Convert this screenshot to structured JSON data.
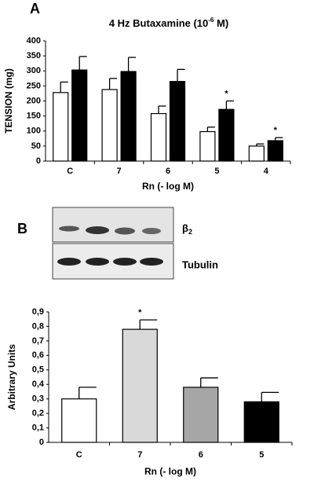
{
  "panels": [
    "A",
    "B"
  ],
  "blot": {
    "target": "β",
    "target_subscript": "2",
    "loading": "Tubulin"
  },
  "chart_data": [
    {
      "type": "bar",
      "title_parts": [
        "4 Hz Butaxamine (10",
        "-6",
        " M)"
      ],
      "x_label": "Rn (- log M)",
      "y_label": "TENSION (mg)",
      "categories": [
        "C",
        "7",
        "6",
        "5",
        "4"
      ],
      "series": [
        {
          "color": "#ffffff",
          "values": [
            228,
            238,
            158,
            98,
            50
          ],
          "errors": [
            35,
            37,
            25,
            15,
            7
          ],
          "significance": [
            null,
            null,
            null,
            null,
            null
          ]
        },
        {
          "color": "#000000",
          "values": [
            303,
            298,
            265,
            172,
            68
          ],
          "errors": [
            45,
            47,
            40,
            28,
            10
          ],
          "significance": [
            null,
            null,
            null,
            "*",
            "*"
          ]
        }
      ],
      "ylim": [
        0,
        400
      ],
      "yticks": [
        0,
        50,
        100,
        150,
        200,
        250,
        300,
        350,
        400
      ]
    },
    {
      "type": "bar",
      "x_label": "Rn (- log M)",
      "y_label": "Arbitrary Units",
      "categories": [
        "C",
        "7",
        "6",
        "5"
      ],
      "series": [
        {
          "colors": [
            "#ffffff",
            "#d9d9d9",
            "#a6a6a6",
            "#000000"
          ],
          "values": [
            0.3,
            0.78,
            0.38,
            0.28
          ],
          "errors": [
            0.08,
            0.065,
            0.065,
            0.065
          ],
          "significance": [
            null,
            "*",
            null,
            null
          ]
        }
      ],
      "ylim": [
        0,
        0.9
      ],
      "yticks": [
        {
          "value": 0,
          "label": "0"
        },
        {
          "value": 0.1,
          "label": "0,1"
        },
        {
          "value": 0.2,
          "label": "0,2"
        },
        {
          "value": 0.3,
          "label": "0,3"
        },
        {
          "value": 0.4,
          "label": "0,4"
        },
        {
          "value": 0.5,
          "label": "0,5"
        },
        {
          "value": 0.6,
          "label": "0,6"
        },
        {
          "value": 0.7,
          "label": "0,7"
        },
        {
          "value": 0.8,
          "label": "0,8"
        },
        {
          "value": 0.9,
          "label": "0,9"
        }
      ]
    }
  ]
}
